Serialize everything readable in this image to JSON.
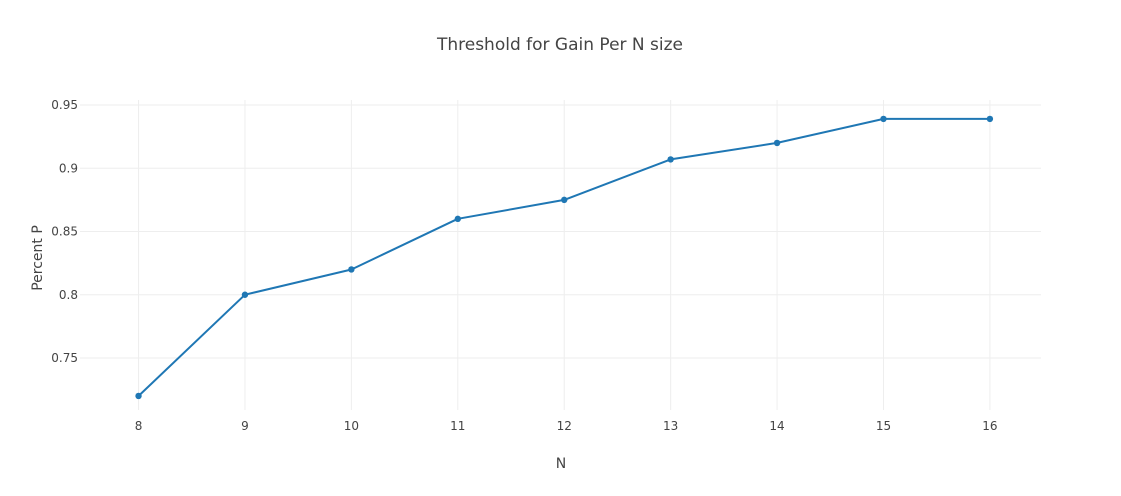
{
  "chart_data": {
    "type": "line",
    "title": "Threshold for Gain Per N size",
    "xlabel": "N",
    "ylabel": "Percent P",
    "x": [
      8,
      9,
      10,
      11,
      12,
      13,
      14,
      15,
      16
    ],
    "y": [
      0.72,
      0.8,
      0.82,
      0.86,
      0.875,
      0.907,
      0.92,
      0.939,
      0.939
    ],
    "x_ticks": [
      "8",
      "9",
      "10",
      "11",
      "12",
      "13",
      "14",
      "15",
      "16"
    ],
    "y_ticks": [
      {
        "value": 0.75,
        "label": "0.75"
      },
      {
        "value": 0.8,
        "label": "0.8"
      },
      {
        "value": 0.85,
        "label": "0.85"
      },
      {
        "value": 0.9,
        "label": "0.9"
      },
      {
        "value": 0.95,
        "label": "0.95"
      }
    ],
    "xlim": [
      7.45,
      16.48
    ],
    "ylim": [
      0.7,
      0.95
    ],
    "grid": true,
    "line_color": "#1f77b4"
  }
}
